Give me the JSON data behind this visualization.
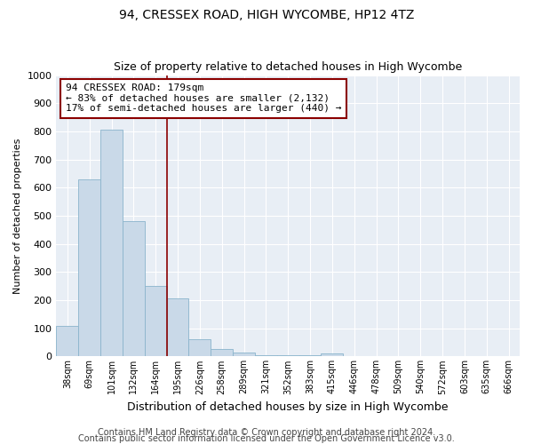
{
  "title_line1": "94, CRESSEX ROAD, HIGH WYCOMBE, HP12 4TZ",
  "title_line2": "Size of property relative to detached houses in High Wycombe",
  "xlabel": "Distribution of detached houses by size in High Wycombe",
  "ylabel": "Number of detached properties",
  "bar_color": "#c9d9e8",
  "bar_edge_color": "#8ab4cc",
  "highlight_bar_color": "#7aaac8",
  "highlight_bar_index": 10,
  "categories": [
    "38sqm",
    "69sqm",
    "101sqm",
    "132sqm",
    "164sqm",
    "195sqm",
    "226sqm",
    "258sqm",
    "289sqm",
    "321sqm",
    "352sqm",
    "383sqm",
    "415sqm",
    "446sqm",
    "478sqm",
    "509sqm",
    "540sqm",
    "572sqm",
    "603sqm",
    "635sqm",
    "666sqm"
  ],
  "values": [
    110,
    630,
    805,
    480,
    250,
    205,
    60,
    25,
    15,
    5,
    5,
    5,
    10,
    0,
    0,
    0,
    0,
    0,
    0,
    0,
    0
  ],
  "ylim": [
    0,
    1000
  ],
  "yticks": [
    0,
    100,
    200,
    300,
    400,
    500,
    600,
    700,
    800,
    900,
    1000
  ],
  "annotation_text": "94 CRESSEX ROAD: 179sqm\n← 83% of detached houses are smaller (2,132)\n17% of semi-detached houses are larger (440) →",
  "vline_x": 4.5,
  "footer_line1": "Contains HM Land Registry data © Crown copyright and database right 2024.",
  "footer_line2": "Contains public sector information licensed under the Open Government Licence v3.0.",
  "plot_background": "#e8eef5",
  "title1_fontsize": 10,
  "title2_fontsize": 9,
  "annotation_fontsize": 8,
  "footer_fontsize": 7,
  "ylabel_fontsize": 8,
  "xlabel_fontsize": 9
}
